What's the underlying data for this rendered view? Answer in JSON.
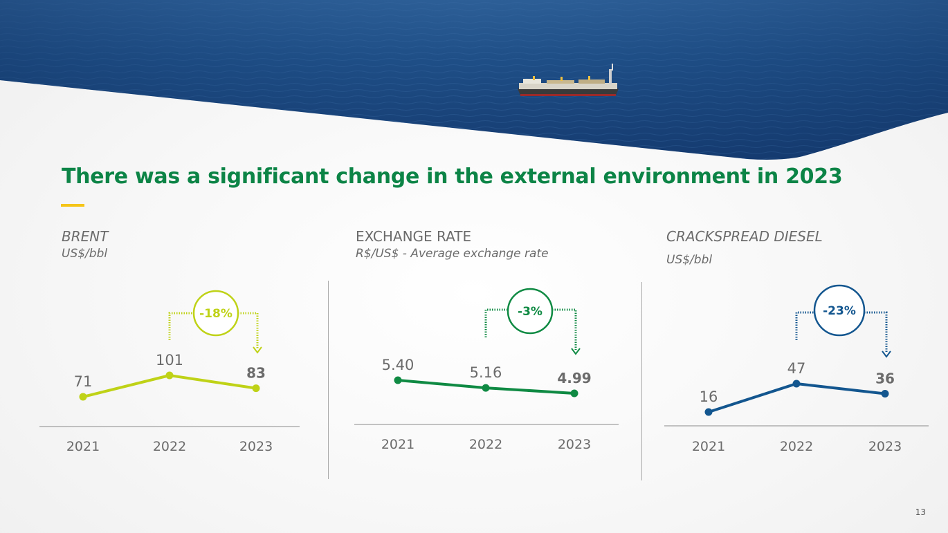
{
  "slide": {
    "title": "There was a significant change in the external environment in 2023",
    "page_number": "13",
    "banner_image": "aerial view of an offshore FPSO oil platform ship on the open sea"
  },
  "colors": {
    "title_green": "#0c8446",
    "accent_yellow": "#f5c518",
    "brent": "#bfd217",
    "exchange": "#0f8a43",
    "diesel": "#13568f",
    "value_text": "#6b6b6b",
    "axis": "#8a8a8a"
  },
  "chart_data": [
    {
      "id": "brent",
      "type": "line",
      "title": "BRENT",
      "subtitle": "US$/bbl",
      "categories": [
        "2021",
        "2022",
        "2023"
      ],
      "values": [
        71,
        101,
        83
      ],
      "labels": [
        "71",
        "101",
        "83"
      ],
      "change_label": "-18%",
      "color_key": "brent"
    },
    {
      "id": "exchange",
      "type": "line",
      "title": "EXCHANGE RATE",
      "subtitle": "R$/US$ - Average exchange rate",
      "categories": [
        "2021",
        "2022",
        "2023"
      ],
      "values": [
        5.4,
        5.16,
        4.99
      ],
      "labels": [
        "5.40",
        "5.16",
        "4.99"
      ],
      "change_label": "-3%",
      "color_key": "exchange"
    },
    {
      "id": "diesel",
      "type": "line",
      "title": "CRACKSPREAD DIESEL",
      "subtitle": "US$/bbl",
      "categories": [
        "2021",
        "2022",
        "2023"
      ],
      "values": [
        16,
        47,
        36
      ],
      "labels": [
        "16",
        "47",
        "36"
      ],
      "change_label": "-23%",
      "color_key": "diesel"
    }
  ]
}
